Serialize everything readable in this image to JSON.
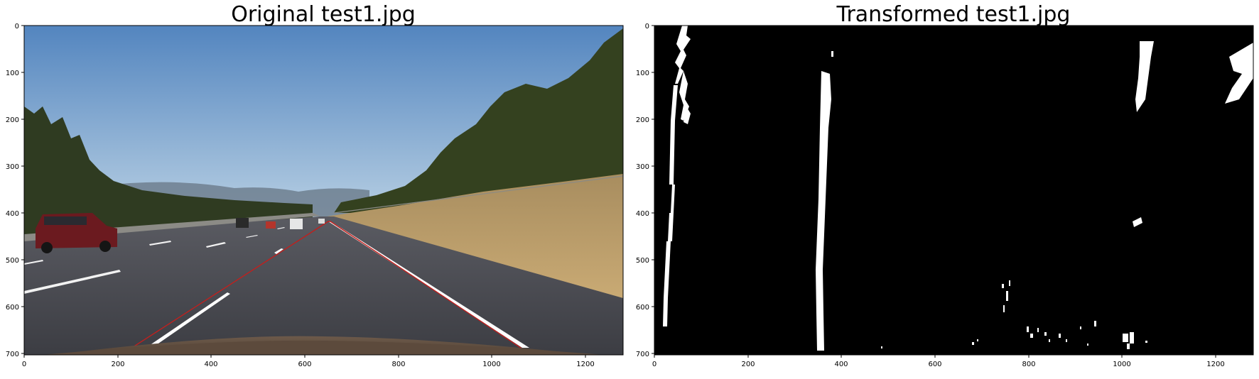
{
  "panels": [
    {
      "title": "Original test1.jpg",
      "xticks": [
        "0",
        "200",
        "400",
        "600",
        "800",
        "1000",
        "1200"
      ],
      "yticks": [
        "0",
        "100",
        "200",
        "300",
        "400",
        "500",
        "600",
        "700"
      ]
    },
    {
      "title": "Transformed test1.jpg",
      "xticks": [
        "0",
        "200",
        "400",
        "600",
        "800",
        "1000",
        "1200"
      ],
      "yticks": [
        "0",
        "100",
        "200",
        "300",
        "400",
        "500",
        "600",
        "700"
      ]
    }
  ],
  "colors": {
    "sky_top": "#5a8fc4",
    "sky_bottom": "#a8c6e0",
    "road": "#46464d",
    "grass": "#c2a36e",
    "trees": "#2f3a22",
    "car": "#6b1a1f",
    "lane_marking": "#ffffff",
    "trapezoid": "#c0201e",
    "binary_background": "#000000",
    "binary_foreground": "#ffffff"
  }
}
